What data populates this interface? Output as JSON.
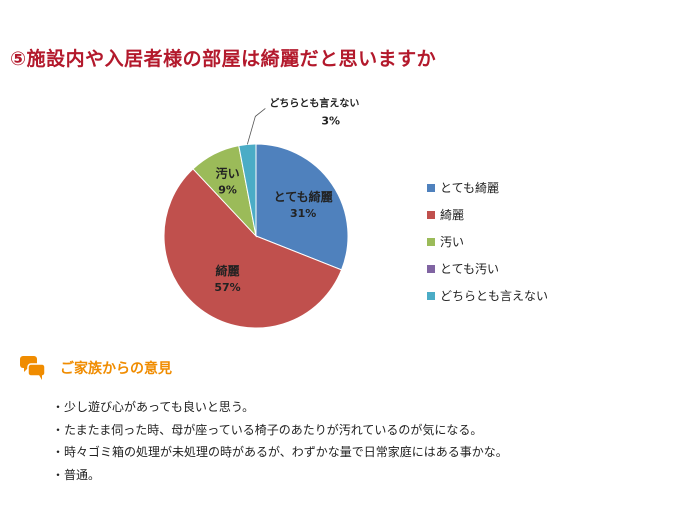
{
  "title": "⑤施設内や入居者様の部屋は綺麗だと思いますか",
  "chart_data": {
    "type": "pie",
    "title": "",
    "categories": [
      "とても綺麗",
      "綺麗",
      "汚い",
      "とても汚い",
      "どちらとも言えない"
    ],
    "values": [
      31,
      57,
      9,
      0,
      3
    ],
    "unit": "%",
    "colors": [
      "#4f81bd",
      "#c0504d",
      "#9bbb59",
      "#8064a2",
      "#4bacc6"
    ],
    "data_labels": [
      {
        "name": "とても綺麗",
        "value": "31%"
      },
      {
        "name": "綺麗",
        "value": "57%"
      },
      {
        "name": "汚い",
        "value": "9%"
      },
      {
        "name": "とても汚い",
        "value": ""
      },
      {
        "name": "どちらとも言えない",
        "value": "3%"
      }
    ],
    "legend_position": "right"
  },
  "comments": {
    "heading": "ご家族からの意見",
    "icon": "speech-bubbles-icon",
    "icon_color": "#f08c00",
    "items": [
      "少し遊び心があっても良いと思う。",
      "たまたま伺った時、母が座っている椅子のあたりが汚れているのが気になる。",
      "時々ゴミ箱の処理が未処理の時があるが、わずかな量で日常家庭にはある事かな。",
      "普通。"
    ]
  }
}
